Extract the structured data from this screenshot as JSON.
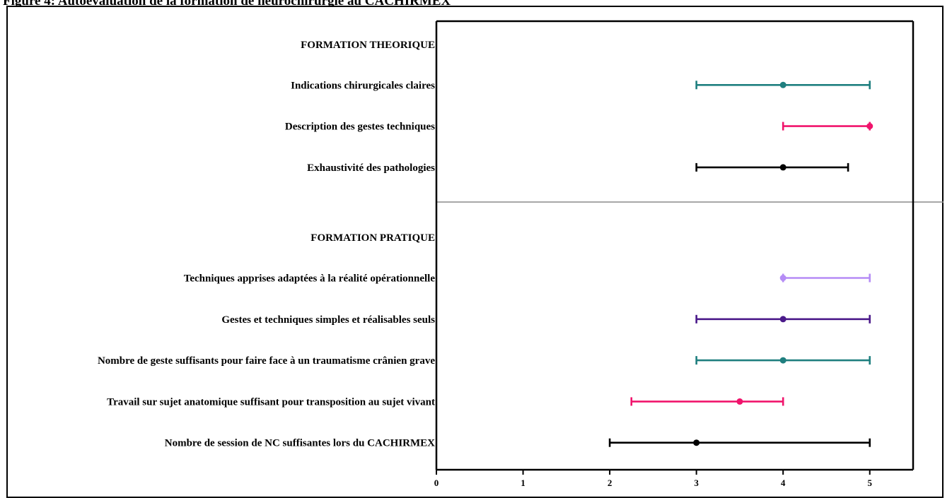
{
  "figure": {
    "caption": "Figure 4: Autoévaluation de la formation de neurochirurgie au CACHIRMEX"
  },
  "colors": {
    "teal": "#1f7f7f",
    "pink": "#f0146c",
    "black": "#000000",
    "lavender": "#b58cf5",
    "purple": "#4b1a8a",
    "divider": "#8c8c8c"
  },
  "chart_data": {
    "type": "forest",
    "title": "",
    "xlabel": "",
    "ylabel": "",
    "xlim": [
      0,
      5.5
    ],
    "xticks": [
      0,
      1,
      2,
      3,
      4,
      5
    ],
    "grid": false,
    "legend": "none",
    "sections": [
      {
        "header": "FORMATION THEORIQUE",
        "items": [
          {
            "label": "Indications chirurgicales claires",
            "median": 4,
            "low": 3,
            "high": 5,
            "color": "#1f7f7f"
          },
          {
            "label": "Description des gestes techniques",
            "median": 5,
            "low": 4,
            "high": 5,
            "color": "#f0146c"
          },
          {
            "label": "Exhaustivité des pathologies",
            "median": 4,
            "low": 3,
            "high": 4.75,
            "color": "#000000"
          }
        ]
      },
      {
        "header": "FORMATION PRATIQUE",
        "items": [
          {
            "label": "Techniques apprises adaptées à la réalité opérationnelle",
            "median": 4,
            "low": 4,
            "high": 5,
            "color": "#b58cf5"
          },
          {
            "label": "Gestes et techniques simples et réalisables seuls",
            "median": 4,
            "low": 3,
            "high": 5,
            "color": "#4b1a8a"
          },
          {
            "label": "Nombre de geste suffisants pour faire face à un traumatisme crânien grave",
            "median": 4,
            "low": 3,
            "high": 5,
            "color": "#1f7f7f"
          },
          {
            "label": "Travail sur sujet anatomique suffisant pour transposition au sujet vivant",
            "median": 3.5,
            "low": 2.25,
            "high": 4,
            "color": "#f0146c"
          },
          {
            "label": "Nombre de session de NC suffisantes lors du CACHIRMEX",
            "median": 3,
            "low": 2,
            "high": 5,
            "color": "#000000"
          }
        ]
      }
    ]
  }
}
